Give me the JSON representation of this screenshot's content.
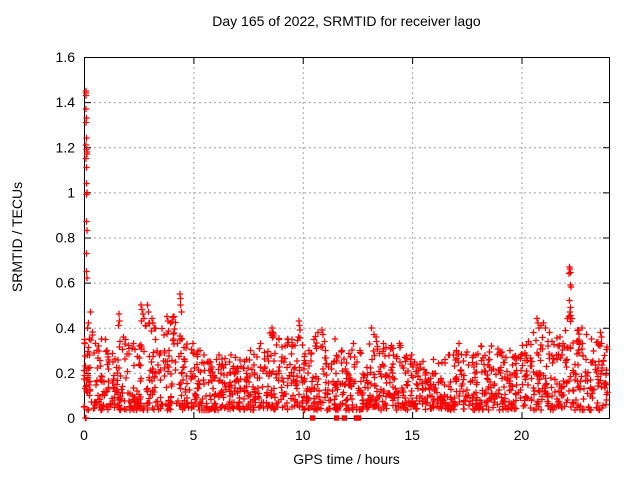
{
  "chart_data": {
    "type": "scatter",
    "title": "Day 165 of 2022, SRMTID for receiver lago",
    "xlabel": "GPS time / hours",
    "ylabel": "SRMTID / TECUs",
    "xlim": [
      0,
      24
    ],
    "ylim": [
      0,
      1.6
    ],
    "xticks": [
      0,
      5,
      10,
      15,
      20
    ],
    "xtick_labels": [
      "0",
      "5",
      "10",
      "15",
      "20"
    ],
    "yticks": [
      0,
      0.2,
      0.4,
      0.6,
      0.8,
      1.0,
      1.2,
      1.4,
      1.6
    ],
    "ytick_labels": [
      "0",
      "0.2",
      "0.4",
      "0.6",
      "0.8",
      "1",
      "1.2",
      "1.4",
      "1.6"
    ],
    "grid": true,
    "legend_position": "none",
    "marker": "plus",
    "colors": {
      "points": "#ff0000",
      "grid": "#a0a0a0",
      "axis": "#000000",
      "text": "#000000",
      "background": "#ffffff"
    },
    "startup_spike_points": [
      [
        0.07,
        0.0
      ],
      [
        0.1,
        0.0
      ],
      [
        0.05,
        0.13
      ],
      [
        0.08,
        0.14
      ],
      [
        0.15,
        0.28
      ],
      [
        0.2,
        0.22
      ],
      [
        0.18,
        0.18
      ],
      [
        0.22,
        0.16
      ],
      [
        0.25,
        0.1
      ],
      [
        0.28,
        0.12
      ],
      [
        0.25,
        0.35
      ],
      [
        0.2,
        0.42
      ],
      [
        0.3,
        0.47
      ],
      [
        0.12,
        0.65
      ],
      [
        0.13,
        0.62
      ],
      [
        0.11,
        0.73
      ],
      [
        0.12,
        0.87
      ],
      [
        0.14,
        0.83
      ],
      [
        0.11,
        1.04
      ],
      [
        0.13,
        1.0
      ],
      [
        0.12,
        0.99
      ],
      [
        0.12,
        1.11
      ],
      [
        0.1,
        1.15
      ],
      [
        0.14,
        1.17
      ],
      [
        0.13,
        1.18
      ],
      [
        0.11,
        1.19
      ],
      [
        0.1,
        1.21
      ],
      [
        0.12,
        1.24
      ],
      [
        0.1,
        1.31
      ],
      [
        0.11,
        1.33
      ],
      [
        0.1,
        1.37
      ],
      [
        0.09,
        1.43
      ],
      [
        0.1,
        1.44
      ],
      [
        0.08,
        1.45
      ]
    ],
    "peak_points": [
      [
        1.58,
        0.41
      ],
      [
        1.6,
        0.46
      ],
      [
        1.63,
        0.43
      ],
      [
        2.6,
        0.5
      ],
      [
        2.62,
        0.43
      ],
      [
        2.65,
        0.48
      ],
      [
        2.7,
        0.46
      ],
      [
        2.75,
        0.44
      ],
      [
        2.9,
        0.5
      ],
      [
        2.95,
        0.47
      ],
      [
        3.1,
        0.44
      ],
      [
        3.15,
        0.42
      ],
      [
        3.8,
        0.45
      ],
      [
        3.85,
        0.43
      ],
      [
        4.38,
        0.55
      ],
      [
        4.4,
        0.53
      ],
      [
        4.42,
        0.5
      ],
      [
        4.45,
        0.47
      ],
      [
        8.6,
        0.4
      ],
      [
        8.65,
        0.38
      ],
      [
        9.82,
        0.43
      ],
      [
        9.85,
        0.41
      ],
      [
        9.87,
        0.39
      ],
      [
        10.88,
        0.39
      ],
      [
        10.92,
        0.37
      ],
      [
        13.15,
        0.4
      ],
      [
        13.25,
        0.37
      ],
      [
        13.35,
        0.36
      ],
      [
        17.15,
        0.33
      ],
      [
        20.7,
        0.44
      ],
      [
        20.75,
        0.42
      ],
      [
        20.8,
        0.4
      ],
      [
        20.9,
        0.41
      ],
      [
        21.0,
        0.42
      ],
      [
        21.1,
        0.4
      ],
      [
        22.2,
        0.67
      ],
      [
        22.22,
        0.66
      ],
      [
        22.25,
        0.645
      ],
      [
        22.18,
        0.64
      ],
      [
        22.23,
        0.59
      ],
      [
        22.26,
        0.58
      ],
      [
        22.2,
        0.52
      ],
      [
        22.24,
        0.49
      ],
      [
        22.21,
        0.47
      ],
      [
        22.25,
        0.455
      ],
      [
        22.3,
        0.44
      ],
      [
        23.6,
        0.38
      ],
      [
        23.65,
        0.36
      ]
    ],
    "zero_marker_hours": [
      10.45,
      11.55,
      11.9,
      12.45,
      12.55
    ],
    "near_zero_points": [
      [
        11.6,
        0.035
      ],
      [
        12.78,
        0.05
      ],
      [
        12.88,
        0.06
      ]
    ],
    "noise_band": {
      "description": "Dense noise band of SRMTID values; per 0.5-hour bin upper envelope in TECUs, floor ~0.035",
      "x_start": 0,
      "bin_width_hours": 0.5,
      "y_min": 0.035,
      "bin_max_values": [
        0.4,
        0.35,
        0.3,
        0.36,
        0.33,
        0.42,
        0.4,
        0.42,
        0.45,
        0.33,
        0.3,
        0.25,
        0.28,
        0.28,
        0.26,
        0.3,
        0.33,
        0.38,
        0.35,
        0.36,
        0.3,
        0.38,
        0.35,
        0.3,
        0.33,
        0.3,
        0.34,
        0.33,
        0.33,
        0.28,
        0.25,
        0.26,
        0.26,
        0.28,
        0.3,
        0.28,
        0.32,
        0.32,
        0.3,
        0.28,
        0.34,
        0.38,
        0.38,
        0.36,
        0.45,
        0.4,
        0.35,
        0.33
      ],
      "points_per_bin": 34,
      "shape_exponent": 1.5,
      "seed": 165
    }
  }
}
